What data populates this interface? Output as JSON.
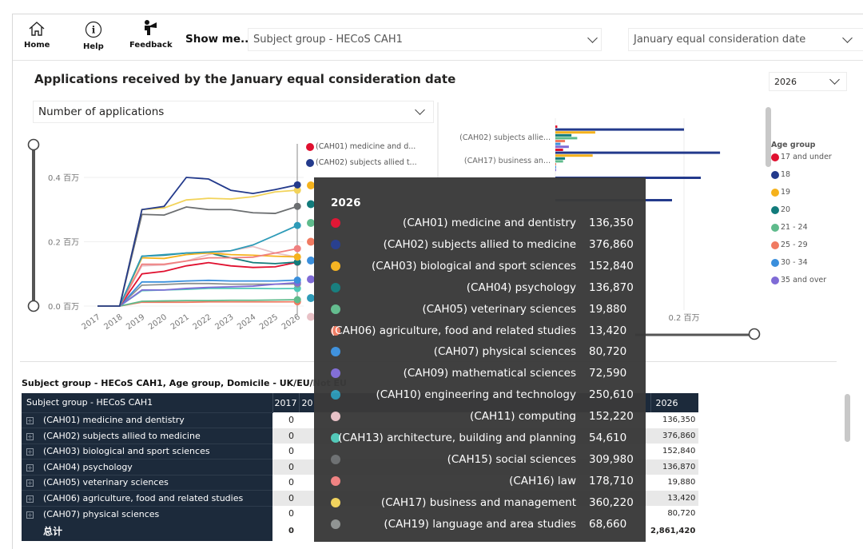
{
  "toolbar": {
    "home": "Home",
    "help": "Help",
    "feedback": "Feedback",
    "show_me": "Show me...",
    "subject_dropdown": "Subject group - HECoS CAH1",
    "date_dropdown": "January equal consideration date"
  },
  "page_title": "Applications received by the January equal consideration date",
  "measure_dropdown": "Number of applications",
  "year_dropdown": "2026",
  "colors": {
    "CAH01": "#e0102f",
    "CAH02": "#233a8c",
    "CAH03": "#f5b21c",
    "CAH04": "#127b7b",
    "CAH05": "#5fbb8c",
    "CAH06": "#f07a61",
    "CAH07": "#3a8fdc",
    "CAH09": "#7f6bd6",
    "CAH10": "#2e9bb8",
    "CAH11": "#e8c1c6",
    "CAH13": "#4fc8b8",
    "CAH15": "#6b6e70",
    "CAH16": "#f08080",
    "CAH17": "#f2d35a",
    "CAH19": "#8d9190"
  },
  "chart_data": [
    {
      "type": "line",
      "y_tick_labels": [
        "0.0 百万",
        "0.2 百万",
        "0.4 百万"
      ],
      "ylim": [
        0,
        400000
      ],
      "categories": [
        "2017",
        "2018",
        "2019",
        "2020",
        "2021",
        "2022",
        "2023",
        "2024",
        "2025",
        "2026"
      ],
      "legend": [
        "(CAH01) medicine and d...",
        "(CAH02) subjects allied t..."
      ],
      "series": [
        {
          "name": "(CAH02) subjects allied to medicine",
          "key": "CAH02",
          "values": [
            0,
            0,
            300000,
            310000,
            400000,
            395000,
            360000,
            350000,
            362000,
            376860
          ]
        },
        {
          "name": "(CAH17) business and management",
          "key": "CAH17",
          "values": [
            0,
            0,
            300000,
            305000,
            330000,
            335000,
            333000,
            340000,
            355000,
            360220
          ]
        },
        {
          "name": "(CAH15) social sciences",
          "key": "CAH15",
          "values": [
            0,
            0,
            285000,
            283000,
            308000,
            300000,
            300000,
            290000,
            288000,
            309980
          ]
        },
        {
          "name": "(CAH10) engineering and technology",
          "key": "CAH10",
          "values": [
            0,
            0,
            155000,
            160000,
            165000,
            168000,
            172000,
            190000,
            220000,
            250610
          ]
        },
        {
          "name": "(CAH16) law",
          "key": "CAH16",
          "values": [
            0,
            0,
            130000,
            130000,
            140000,
            150000,
            150000,
            152000,
            165000,
            178710
          ]
        },
        {
          "name": "(CAH03) biological and sport sciences",
          "key": "CAH03",
          "values": [
            0,
            0,
            150000,
            148000,
            160000,
            165000,
            160000,
            158000,
            155000,
            152840
          ]
        },
        {
          "name": "(CAH11) computing",
          "key": "CAH11",
          "values": [
            0,
            0,
            125000,
            128000,
            140000,
            160000,
            172000,
            185000,
            165000,
            152220
          ]
        },
        {
          "name": "(CAH04) psychology",
          "key": "CAH04",
          "values": [
            0,
            0,
            155000,
            158000,
            165000,
            165000,
            150000,
            135000,
            132000,
            136870
          ]
        },
        {
          "name": "(CAH01) medicine and dentistry",
          "key": "CAH01",
          "values": [
            0,
            0,
            100000,
            108000,
            125000,
            135000,
            125000,
            120000,
            122000,
            136350
          ]
        },
        {
          "name": "(CAH07) physical sciences",
          "key": "CAH07",
          "values": [
            0,
            0,
            75000,
            75000,
            78000,
            80000,
            78000,
            78000,
            78000,
            80720
          ]
        },
        {
          "name": "(CAH09) mathematical sciences",
          "key": "CAH09",
          "values": [
            0,
            0,
            50000,
            50000,
            55000,
            58000,
            60000,
            62000,
            68000,
            72590
          ]
        },
        {
          "name": "(CAH19) language and area studies",
          "key": "CAH19",
          "values": [
            0,
            0,
            65000,
            67000,
            70000,
            70000,
            68000,
            68000,
            68000,
            68660
          ]
        },
        {
          "name": "(CAH13) architecture, building and planning",
          "key": "CAH13",
          "values": [
            0,
            0,
            48000,
            50000,
            52000,
            55000,
            55000,
            55000,
            54000,
            54610
          ]
        },
        {
          "name": "(CAH05) veterinary sciences",
          "key": "CAH05",
          "values": [
            0,
            0,
            15000,
            16000,
            17000,
            17000,
            18000,
            18000,
            19000,
            19880
          ]
        },
        {
          "name": "(CAH06) agriculture, food and related studies",
          "key": "CAH06",
          "values": [
            0,
            0,
            12000,
            12000,
            12000,
            13000,
            13000,
            13000,
            13000,
            13420
          ]
        }
      ]
    },
    {
      "type": "bar",
      "orientation": "horizontal",
      "x_tick_labels": [
        "0.2 百万"
      ],
      "xlim": [
        0,
        300000
      ],
      "categories": [
        "(CAH02) subjects allie...",
        "(CAH17) business an..."
      ],
      "legend_title": "Age group",
      "series": [
        {
          "name": "17 and under",
          "color": "#e0102f",
          "values": [
            3000,
            12000
          ]
        },
        {
          "name": "18",
          "color": "#233a8c",
          "values": [
            200000,
            256000
          ]
        },
        {
          "name": "19",
          "color": "#f5b21c",
          "values": [
            62000,
            58000
          ]
        },
        {
          "name": "20",
          "color": "#127b7b",
          "values": [
            25000,
            15000
          ]
        },
        {
          "name": "21 - 24",
          "color": "#5fbb8c",
          "values": [
            34000,
            12000
          ]
        },
        {
          "name": "25 - 29",
          "color": "#f07a61",
          "values": [
            15000,
            1000
          ]
        },
        {
          "name": "30 - 34",
          "color": "#3a8fdc",
          "values": [
            8000,
            1000
          ]
        },
        {
          "name": "35 and over",
          "color": "#7f6bd6",
          "values": [
            21000,
            1000
          ]
        }
      ]
    }
  ],
  "tooltip": {
    "title": "2026",
    "rows": [
      {
        "key": "CAH01",
        "label": "(CAH01) medicine and dentistry",
        "value": "136,350"
      },
      {
        "key": "CAH02",
        "label": "(CAH02) subjects allied to medicine",
        "value": "376,860"
      },
      {
        "key": "CAH03",
        "label": "(CAH03) biological and sport sciences",
        "value": "152,840"
      },
      {
        "key": "CAH04",
        "label": "(CAH04) psychology",
        "value": "136,870"
      },
      {
        "key": "CAH05",
        "label": "(CAH05) veterinary sciences",
        "value": "19,880"
      },
      {
        "key": "CAH06",
        "label": "(CAH06) agriculture, food and related studies",
        "value": "13,420"
      },
      {
        "key": "CAH07",
        "label": "(CAH07) physical sciences",
        "value": "80,720"
      },
      {
        "key": "CAH09",
        "label": "(CAH09) mathematical sciences",
        "value": "72,590"
      },
      {
        "key": "CAH10",
        "label": "(CAH10) engineering and technology",
        "value": "250,610"
      },
      {
        "key": "CAH11",
        "label": "(CAH11) computing",
        "value": "152,220"
      },
      {
        "key": "CAH13",
        "label": "(CAH13) architecture, building and planning",
        "value": "54,610"
      },
      {
        "key": "CAH15",
        "label": "(CAH15) social sciences",
        "value": "309,980"
      },
      {
        "key": "CAH16",
        "label": "(CAH16) law",
        "value": "178,710"
      },
      {
        "key": "CAH17",
        "label": "(CAH17) business and management",
        "value": "360,220"
      },
      {
        "key": "CAH19",
        "label": "(CAH19) language and area studies",
        "value": "68,660"
      }
    ]
  },
  "table": {
    "title": "Subject group - HECoS CAH1, Age group, Domicile - UK/EU/Not EU",
    "header": [
      "Subject group - HECoS CAH1",
      "2017",
      "20",
      "2026"
    ],
    "rows": [
      {
        "label": "(CAH01) medicine and dentistry",
        "y2017": "0",
        "y2026": "136,350"
      },
      {
        "label": "(CAH02) subjects allied to medicine",
        "y2017": "0",
        "y2026": "376,860"
      },
      {
        "label": "(CAH03) biological and sport sciences",
        "y2017": "0",
        "y2026": "152,840"
      },
      {
        "label": "(CAH04) psychology",
        "y2017": "0",
        "y2026": "136,870"
      },
      {
        "label": "(CAH05) veterinary sciences",
        "y2017": "0",
        "y2026": "19,880"
      },
      {
        "label": "(CAH06) agriculture, food and related studies",
        "y2017": "0",
        "y2026": "13,420"
      },
      {
        "label": "(CAH07) physical sciences",
        "y2017": "0",
        "y2026": "80,720"
      }
    ],
    "total": {
      "label": "总计",
      "y2017": "0",
      "y2026": "2,861,420"
    }
  }
}
